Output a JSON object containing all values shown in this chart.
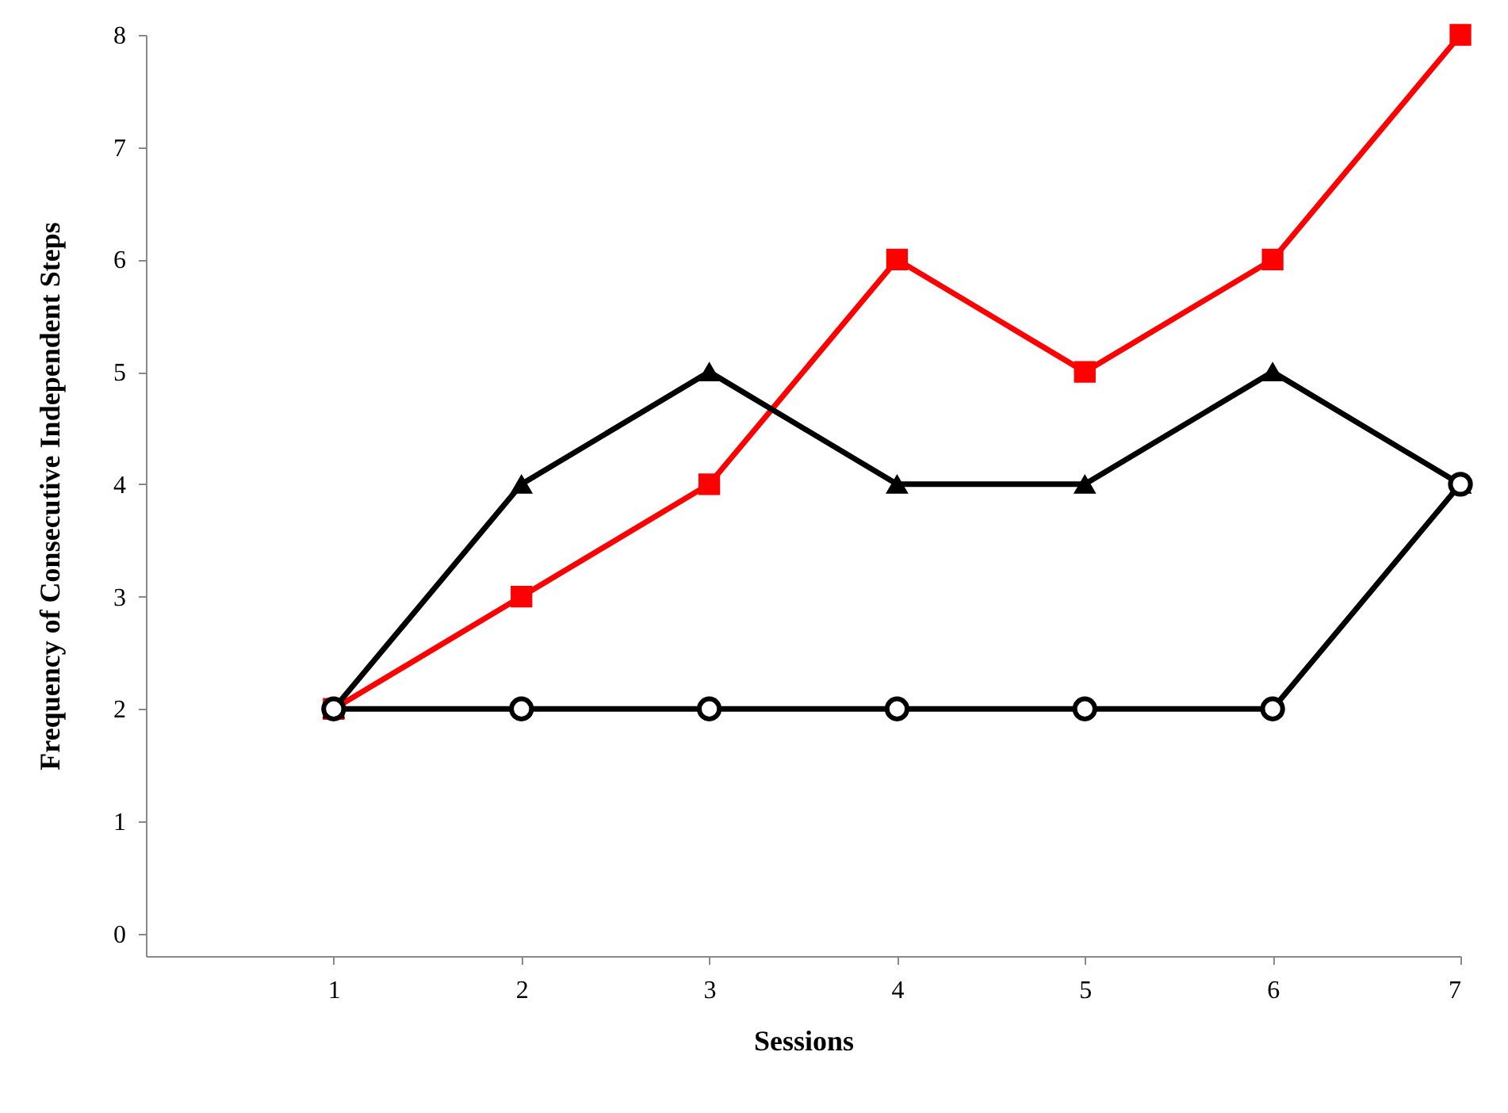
{
  "chart_data": {
    "type": "line",
    "xlabel": "Sessions",
    "ylabel": "Frequency of Consecutive Independent Steps",
    "x": [
      1,
      2,
      3,
      4,
      5,
      6,
      7
    ],
    "series": [
      {
        "color": "#ff0000",
        "marker": "square",
        "values": [
          2,
          3,
          4,
          6,
          5,
          6,
          8
        ]
      },
      {
        "color": "#000000",
        "marker": "triangle",
        "values": [
          2,
          4,
          5,
          4,
          4,
          5,
          4
        ]
      },
      {
        "color": "#000000",
        "marker": "circle",
        "values": [
          2,
          2,
          2,
          2,
          2,
          2,
          4
        ]
      }
    ],
    "xlim": [
      0,
      7
    ],
    "xticks": [
      1,
      2,
      3,
      4,
      5,
      6,
      7
    ],
    "ylim": [
      -0.2,
      8
    ],
    "yticks": [
      0,
      1,
      2,
      3,
      4,
      5,
      6,
      7,
      8
    ],
    "grid": false,
    "line_style": "solid"
  }
}
